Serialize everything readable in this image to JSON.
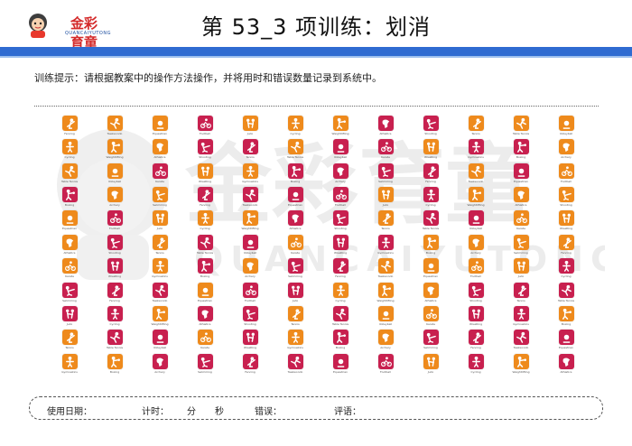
{
  "header": {
    "logo_text": "金彩育童",
    "logo_sub": "QUANCAIYUTONG",
    "title": "第 53_3 项训练：划消"
  },
  "instruction": "训练提示：请根据教案中的操作方法操作，并将用时和错误数量记录到系统中。",
  "watermark": {
    "text": "金彩育童",
    "sub": "QUANCAIYUTONG"
  },
  "colors": {
    "red": "#c8204f",
    "orange": "#ee8a1c",
    "blue": "#2f6bd1"
  },
  "grid": {
    "rows": 11,
    "cols": 12,
    "pattern": [
      "OOOROOORROOO",
      "OOORRORRORRO",
      "OOROORRRRORO",
      "ROORRRROROOO",
      "OROOORRORROO",
      "ORORRORROOOO",
      "ORORORROOOOR",
      "RRRORROOORRR",
      "RRORROROORRO",
      "ORRORORORRRR",
      "OORRRRRROROR"
    ],
    "icons": [
      "fencing-icon",
      "volleyball-icon",
      "judo-icon",
      "boxing-icon",
      "shooting-icon",
      "taekwondo-icon",
      "karate-icon",
      "cycling-icon",
      "archery-icon",
      "tennis-icon",
      "equestrian-icon",
      "wrestling-icon",
      "weightlifting-icon",
      "swimming-icon",
      "table-tennis-icon",
      "football-icon",
      "gymnastics-icon",
      "athletics-icon"
    ],
    "names": [
      "Fencing",
      "Volleyball",
      "Judo",
      "Boxing",
      "Shooting",
      "Taekwondo",
      "Karate",
      "Cycling",
      "Archery",
      "Tennis",
      "Equestrian",
      "Wrestling",
      "Weightlifting",
      "Swimming",
      "Table Tennis",
      "Football",
      "Gymnastics",
      "Athletics"
    ]
  },
  "footer": {
    "date_label": "使用日期：",
    "time_label": "计时：",
    "minute_label": "分",
    "second_label": "秒",
    "error_label": "错误：",
    "review_label": "评语："
  }
}
